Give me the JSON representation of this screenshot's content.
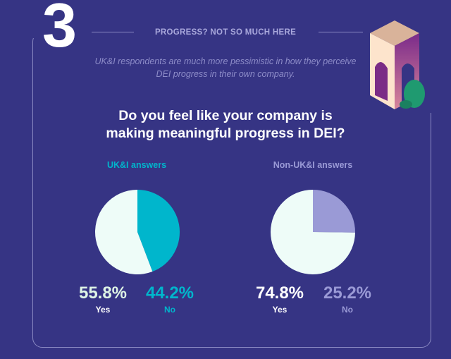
{
  "section_number": "3",
  "section_title": "PROGRESS? NOT SO MUCH HERE",
  "subtitle": "UK&I respondents are much more pessimistic in how they perceive DEI progress in their own company.",
  "question_line1": "Do you feel like your company is",
  "question_line2": "making meaningful progress in DEI?",
  "colors": {
    "background": "#363484",
    "yes": "#eefcf8",
    "uki_no": "#00b6cc",
    "non_uki_no": "#9a9ad6"
  },
  "chart_data": [
    {
      "type": "pie",
      "title": "UK&I answers",
      "categories": [
        "Yes",
        "No"
      ],
      "values": [
        55.8,
        44.2
      ],
      "labels": [
        "55.8%",
        "44.2%"
      ],
      "colors": [
        "#eefcf8",
        "#00b6cc"
      ]
    },
    {
      "type": "pie",
      "title": "Non-UK&I answers",
      "categories": [
        "Yes",
        "No"
      ],
      "values": [
        74.8,
        25.2
      ],
      "labels": [
        "74.8%",
        "25.2%"
      ],
      "colors": [
        "#eefcf8",
        "#9a9ad6"
      ]
    }
  ]
}
